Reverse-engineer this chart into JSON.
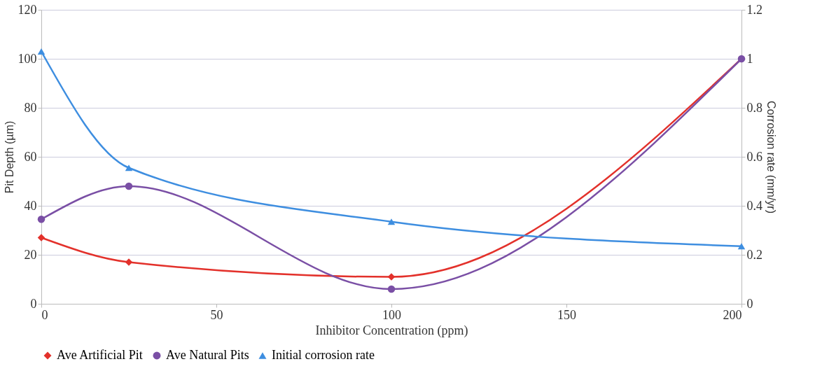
{
  "chart_data": {
    "type": "line",
    "xlabel": "Inhibitor Concentration (ppm)",
    "ylabel": "Pit Depth (µm)",
    "y2label": "Corrosion rate (mm/yr)",
    "x": [
      0,
      25,
      100,
      200
    ],
    "series": [
      {
        "name": "Ave Artificial Pit",
        "color": "#e3312b",
        "marker": "diamond",
        "values": [
          27,
          17,
          11,
          100
        ]
      },
      {
        "name": "Ave Natural Pits",
        "color": "#7a4fa5",
        "marker": "circle",
        "values": [
          34.5,
          48,
          6,
          100
        ]
      },
      {
        "name": "Initial corrosion rate",
        "color": "#3e8ee0",
        "marker": "triangle",
        "axis": "y2",
        "values": [
          1.03,
          0.555,
          0.335,
          0.235
        ]
      }
    ],
    "xlim": [
      0,
      200
    ],
    "xticks": [
      0,
      50,
      100,
      150,
      200
    ],
    "ylim": [
      0,
      120
    ],
    "yticks": [
      0,
      20,
      40,
      60,
      80,
      100,
      120
    ],
    "y2lim": [
      0,
      1.2
    ],
    "y2ticks": [
      0,
      0.2,
      0.4,
      0.6,
      0.8,
      1,
      1.2
    ],
    "grid": "y",
    "legend": "bottom",
    "line_style": "solid"
  }
}
